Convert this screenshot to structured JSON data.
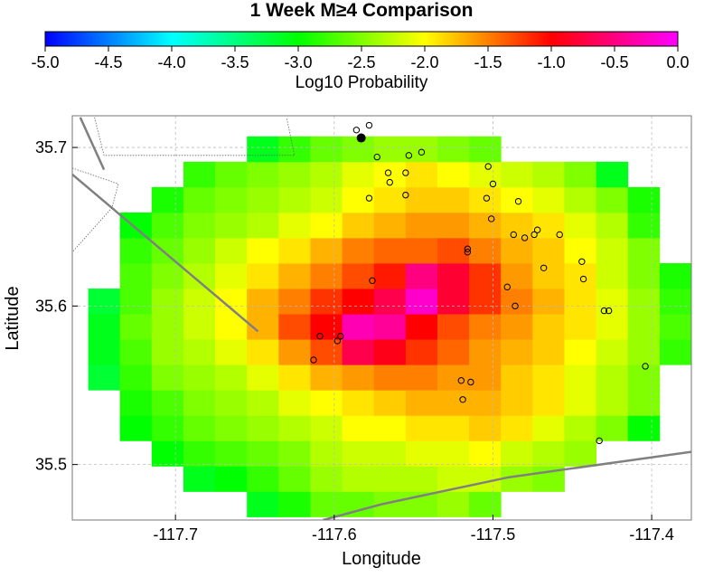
{
  "chart_data": {
    "type": "heatmap",
    "title": "1 Week M≥4 Comparison",
    "colorbar": {
      "label": "Log10 Probability",
      "range": [
        -5.0,
        0.0
      ],
      "ticks": [
        "-5.0",
        "-4.5",
        "-4.0",
        "-3.5",
        "-3.0",
        "-2.5",
        "-2.0",
        "-1.5",
        "-1.0",
        "-0.5",
        "0.0"
      ],
      "colors": [
        "#0000ff",
        "#00ffff",
        "#00ff00",
        "#ffff00",
        "#ff0000",
        "#ff00ff"
      ]
    },
    "xlabel": "Longitude",
    "ylabel": "Latitude",
    "xlim": [
      -117.765,
      -117.375
    ],
    "ylim": [
      35.465,
      35.72
    ],
    "xticks": [
      -117.7,
      -117.6,
      -117.5,
      -117.4
    ],
    "xtick_labels": [
      "-117.7",
      "-117.6",
      "-117.5",
      "-117.4"
    ],
    "yticks": [
      35.5,
      35.6,
      35.7
    ],
    "ytick_labels": [
      "35.5",
      "35.6",
      "35.7"
    ],
    "grid": "dotted",
    "grid_cell": {
      "lon0": -117.745,
      "lat0": 35.475,
      "dlon": 0.02,
      "dlat": 0.016,
      "ncols": 19,
      "nrows": 15
    },
    "grid_values": [
      [
        null,
        null,
        null,
        null,
        null,
        -3.1,
        -2.9,
        -2.6,
        -2.6,
        -2.5,
        -2.5,
        -2.4,
        -2.6,
        null,
        null,
        null,
        null,
        null,
        null
      ],
      [
        null,
        null,
        null,
        -3.1,
        -3.0,
        -2.8,
        -2.6,
        -2.4,
        -2.3,
        -2.3,
        -2.3,
        -2.2,
        -2.2,
        -2.4,
        -2.5,
        null,
        null,
        null,
        null
      ],
      [
        null,
        null,
        -3.0,
        -2.8,
        -2.7,
        -2.6,
        -2.5,
        -2.3,
        -2.2,
        -2.2,
        -2.1,
        -2.1,
        -2.0,
        -2.2,
        -2.3,
        -2.4,
        null,
        null,
        null
      ],
      [
        null,
        -3.0,
        -2.8,
        -2.6,
        -2.5,
        -2.4,
        -2.3,
        -2.2,
        -2.0,
        -2.0,
        -1.9,
        -1.9,
        -1.8,
        -1.9,
        -2.1,
        -2.3,
        -2.5,
        -3.0,
        null
      ],
      [
        null,
        -2.9,
        -2.7,
        -2.5,
        -2.4,
        -2.3,
        -2.1,
        -2.0,
        -1.9,
        -1.8,
        -1.7,
        -1.7,
        -1.7,
        -1.8,
        -1.9,
        -2.1,
        -2.3,
        -2.5,
        null
      ],
      [
        -3.2,
        -2.8,
        -2.5,
        -2.4,
        -2.3,
        -2.1,
        -1.9,
        -1.7,
        -1.6,
        -1.5,
        -1.5,
        -1.6,
        -1.6,
        -1.8,
        -1.9,
        -2.1,
        -2.3,
        -2.5,
        null
      ],
      [
        -3.1,
        -2.7,
        -2.4,
        -2.3,
        -2.1,
        -1.9,
        -1.6,
        -1.3,
        -0.7,
        -0.9,
        -1.2,
        -1.4,
        -1.6,
        -1.7,
        -1.8,
        -2.0,
        -2.2,
        -2.4,
        -2.8
      ],
      [
        -3.1,
        -2.6,
        -2.4,
        -2.2,
        -2.0,
        -1.7,
        -1.3,
        -1.0,
        -0.3,
        -0.4,
        -1.0,
        -1.3,
        -1.5,
        -1.6,
        -1.8,
        -1.9,
        -2.1,
        -2.4,
        -2.7
      ],
      [
        -3.2,
        -2.7,
        -2.4,
        -2.2,
        -2.0,
        -1.7,
        -1.5,
        -1.2,
        -1.0,
        -0.7,
        -0.2,
        -0.8,
        -1.2,
        -1.5,
        -1.7,
        -1.9,
        -2.1,
        -2.4,
        -2.8
      ],
      [
        null,
        -2.7,
        -2.5,
        -2.3,
        -2.1,
        -1.9,
        -1.7,
        -1.5,
        -1.3,
        -1.1,
        -0.5,
        -0.8,
        -1.2,
        -1.6,
        -1.8,
        -1.9,
        -2.2,
        -2.5,
        -2.9
      ],
      [
        null,
        -2.8,
        -2.6,
        -2.4,
        -2.2,
        -2.0,
        -1.9,
        -1.7,
        -1.5,
        -1.4,
        -1.4,
        -1.3,
        -1.5,
        -1.7,
        -1.8,
        -2.0,
        -2.2,
        -2.5,
        null
      ],
      [
        null,
        -3.0,
        -2.7,
        -2.5,
        -2.4,
        -2.3,
        -2.1,
        -2.0,
        -1.8,
        -1.7,
        -1.6,
        -1.6,
        -1.7,
        -1.8,
        -1.9,
        -2.1,
        -2.3,
        -2.8,
        null
      ],
      [
        null,
        null,
        -2.9,
        -2.6,
        -2.5,
        -2.4,
        -2.3,
        -2.2,
        -2.0,
        -1.9,
        -1.8,
        -1.8,
        -1.9,
        -2.0,
        -2.1,
        -2.3,
        -2.5,
        -2.9,
        null
      ],
      [
        null,
        null,
        null,
        -2.8,
        -2.6,
        -2.5,
        -2.4,
        -2.3,
        -2.1,
        -2.0,
        -1.9,
        -2.0,
        -2.1,
        -2.2,
        -2.3,
        -2.5,
        -3.1,
        null,
        null
      ],
      [
        null,
        null,
        null,
        null,
        null,
        -3.1,
        -2.8,
        -2.6,
        -2.5,
        -2.4,
        -2.4,
        -2.5,
        -2.6,
        null,
        null,
        null,
        null,
        null,
        null
      ]
    ],
    "events": [
      {
        "lon": -117.578,
        "lat": 35.714,
        "filled": false
      },
      {
        "lon": -117.586,
        "lat": 35.711,
        "filled": false
      },
      {
        "lon": -117.583,
        "lat": 35.706,
        "filled": true
      },
      {
        "lon": -117.573,
        "lat": 35.694,
        "filled": false
      },
      {
        "lon": -117.553,
        "lat": 35.695,
        "filled": false
      },
      {
        "lon": -117.545,
        "lat": 35.697,
        "filled": false
      },
      {
        "lon": -117.503,
        "lat": 35.688,
        "filled": false
      },
      {
        "lon": -117.566,
        "lat": 35.684,
        "filled": false
      },
      {
        "lon": -117.555,
        "lat": 35.684,
        "filled": false
      },
      {
        "lon": -117.565,
        "lat": 35.678,
        "filled": false
      },
      {
        "lon": -117.578,
        "lat": 35.668,
        "filled": false
      },
      {
        "lon": -117.555,
        "lat": 35.67,
        "filled": false
      },
      {
        "lon": -117.5,
        "lat": 35.677,
        "filled": false
      },
      {
        "lon": -117.504,
        "lat": 35.668,
        "filled": false
      },
      {
        "lon": -117.484,
        "lat": 35.666,
        "filled": false
      },
      {
        "lon": -117.501,
        "lat": 35.655,
        "filled": false
      },
      {
        "lon": -117.487,
        "lat": 35.645,
        "filled": false
      },
      {
        "lon": -117.48,
        "lat": 35.643,
        "filled": false
      },
      {
        "lon": -117.474,
        "lat": 35.645,
        "filled": false
      },
      {
        "lon": -117.472,
        "lat": 35.648,
        "filled": false
      },
      {
        "lon": -117.458,
        "lat": 35.645,
        "filled": false
      },
      {
        "lon": -117.516,
        "lat": 35.636,
        "filled": false
      },
      {
        "lon": -117.516,
        "lat": 35.634,
        "filled": false
      },
      {
        "lon": -117.444,
        "lat": 35.628,
        "filled": false
      },
      {
        "lon": -117.468,
        "lat": 35.624,
        "filled": false
      },
      {
        "lon": -117.576,
        "lat": 35.616,
        "filled": false
      },
      {
        "lon": -117.443,
        "lat": 35.617,
        "filled": false
      },
      {
        "lon": -117.491,
        "lat": 35.612,
        "filled": false
      },
      {
        "lon": -117.486,
        "lat": 35.6,
        "filled": false
      },
      {
        "lon": -117.43,
        "lat": 35.597,
        "filled": false
      },
      {
        "lon": -117.427,
        "lat": 35.597,
        "filled": false
      },
      {
        "lon": -117.609,
        "lat": 35.581,
        "filled": false
      },
      {
        "lon": -117.596,
        "lat": 35.581,
        "filled": false
      },
      {
        "lon": -117.598,
        "lat": 35.578,
        "filled": false
      },
      {
        "lon": -117.613,
        "lat": 35.566,
        "filled": false
      },
      {
        "lon": -117.404,
        "lat": 35.562,
        "filled": false
      },
      {
        "lon": -117.52,
        "lat": 35.553,
        "filled": false
      },
      {
        "lon": -117.514,
        "lat": 35.552,
        "filled": false
      },
      {
        "lon": -117.519,
        "lat": 35.541,
        "filled": false
      },
      {
        "lon": -117.433,
        "lat": 35.515,
        "filled": false
      }
    ],
    "faults": [
      {
        "style": "solid",
        "points": [
          [
            -117.76,
            35.719
          ],
          [
            -117.745,
            35.686
          ]
        ]
      },
      {
        "style": "solid",
        "points": [
          [
            -117.765,
            35.683
          ],
          [
            -117.648,
            35.584
          ]
        ]
      },
      {
        "style": "solid",
        "points": [
          [
            -117.607,
            35.465
          ],
          [
            -117.57,
            35.475
          ],
          [
            -117.49,
            35.492
          ],
          [
            -117.375,
            35.508
          ]
        ]
      },
      {
        "style": "dotted",
        "points": [
          [
            -117.751,
            35.719
          ],
          [
            -117.745,
            35.695
          ],
          [
            -117.625,
            35.695
          ],
          [
            -117.63,
            35.719
          ]
        ]
      },
      {
        "style": "dotted",
        "points": [
          [
            -117.765,
            35.687
          ],
          [
            -117.736,
            35.677
          ],
          [
            -117.74,
            35.662
          ],
          [
            -117.765,
            35.634
          ]
        ]
      }
    ]
  }
}
